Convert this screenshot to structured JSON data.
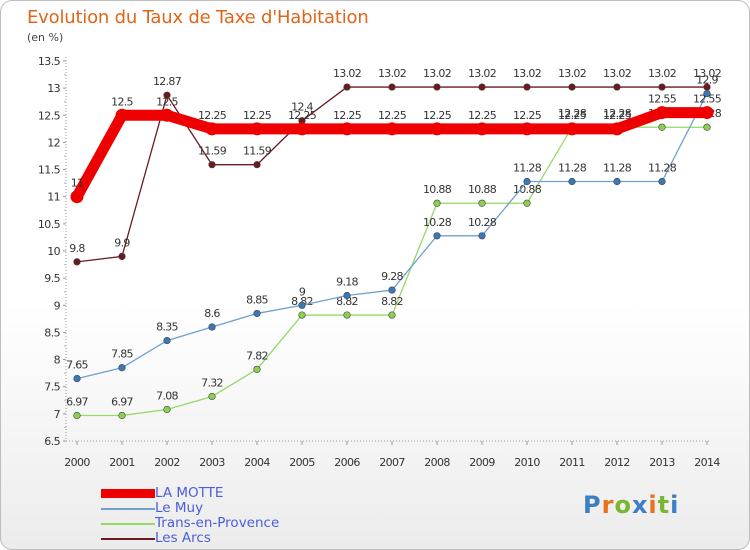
{
  "title": "Evolution du Taux de Taxe d'Habitation",
  "unit_label": "(en %)",
  "logo": {
    "text": "Proxiti",
    "letters": [
      "P",
      "r",
      "o",
      "x",
      "i",
      "t",
      "i"
    ],
    "letter_colors": [
      "#3c7fc4",
      "#e8731c",
      "#7ab730",
      "#3c7fc4",
      "#e8731c",
      "#7ab730",
      "#3c7fc4"
    ]
  },
  "chart_data": {
    "type": "line",
    "title": "Evolution du Taux de Taxe d'Habitation",
    "ylabel": "(en %)",
    "xlabel": "",
    "x": [
      "2000",
      "2001",
      "2002",
      "2003",
      "2004",
      "2005",
      "2006",
      "2007",
      "2008",
      "2009",
      "2010",
      "2011",
      "2012",
      "2013",
      "2014"
    ],
    "ylim": [
      6.5,
      13.5
    ],
    "yticks": [
      "6.5",
      "7",
      "7.5",
      "8",
      "8.5",
      "9",
      "9.5",
      "10",
      "10.5",
      "11",
      "11.5",
      "12",
      "12.5",
      "13",
      "13.5"
    ],
    "grid": false,
    "legend_position": "bottom-left",
    "series": [
      {
        "name": "Les Arcs",
        "color": "#6b1a1f",
        "style": "thin",
        "values": [
          9.8,
          9.9,
          12.87,
          11.59,
          11.59,
          12.4,
          13.02,
          13.02,
          13.02,
          13.02,
          13.02,
          13.02,
          13.02,
          13.02,
          13.02
        ],
        "labels": [
          "9.8",
          "9.9",
          "12.87",
          "11.59",
          "11.59",
          "12.4",
          "13.02",
          "13.02",
          "13.02",
          "13.02",
          "13.02",
          "13.02",
          "13.02",
          "13.02",
          "13.02"
        ]
      },
      {
        "name": "Trans-en-Provence",
        "color": "#94d96a",
        "marker_color": "#8ad04f",
        "style": "thin",
        "values": [
          6.97,
          6.97,
          7.08,
          7.32,
          7.82,
          8.82,
          8.82,
          8.82,
          10.88,
          10.88,
          10.88,
          12.28,
          12.28,
          12.28,
          12.28
        ],
        "labels": [
          "6.97",
          "6.97",
          "7.08",
          "7.32",
          "7.82",
          "8.82",
          "8.82",
          "8.82",
          "10.88",
          "10.88",
          "10.88",
          "12.28",
          "12.28",
          "12.28",
          "12.28"
        ]
      },
      {
        "name": "Le Muy",
        "color": "#6fa0cf",
        "marker_color": "#3a78b8",
        "style": "thin",
        "values": [
          7.65,
          7.85,
          8.35,
          8.6,
          8.85,
          9.0,
          9.18,
          9.28,
          10.28,
          10.28,
          11.28,
          11.28,
          11.28,
          11.28,
          12.9
        ],
        "labels": [
          "7.65",
          "7.85",
          "8.35",
          "8.6",
          "8.85",
          "9",
          "9.18",
          "9.28",
          "10.28",
          "10.28",
          "11.28",
          "11.28",
          "11.28",
          "11.28",
          "12.9"
        ]
      },
      {
        "name": "LA MOTTE",
        "color": "#ee0000",
        "style": "thick",
        "values": [
          11.0,
          12.5,
          12.5,
          12.25,
          12.25,
          12.25,
          12.25,
          12.25,
          12.25,
          12.25,
          12.25,
          12.25,
          12.25,
          12.55,
          12.55
        ],
        "labels": [
          "11",
          "12.5",
          "12.5",
          "12.25",
          "12.25",
          "12.25",
          "12.25",
          "12.25",
          "12.25",
          "12.25",
          "12.25",
          "12.25",
          "12.25",
          "12.55",
          "12.55"
        ]
      }
    ],
    "legend": [
      "LA MOTTE",
      "Le Muy",
      "Trans-en-Provence",
      "Les Arcs"
    ]
  }
}
